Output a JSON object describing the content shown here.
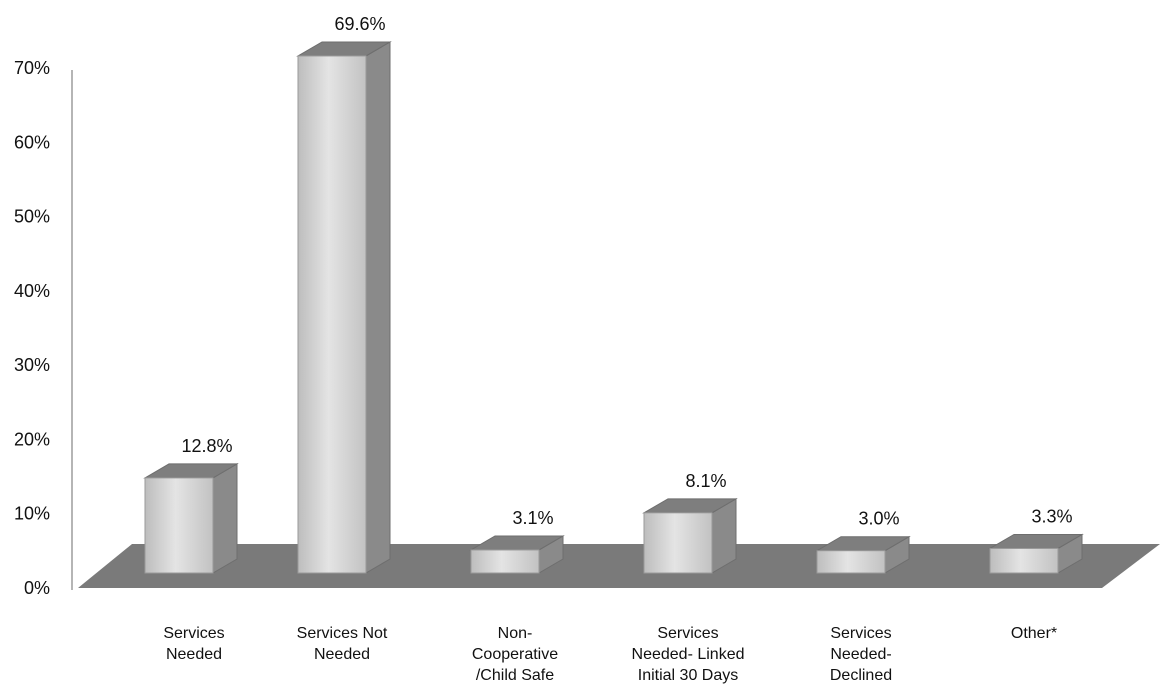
{
  "chart_data": {
    "type": "bar",
    "categories": [
      [
        "Services",
        "Needed"
      ],
      [
        "Services  Not",
        "Needed"
      ],
      [
        "Non-",
        "Cooperative",
        "/Child Safe"
      ],
      [
        "Services",
        "Needed- Linked",
        "Initial 30 Days"
      ],
      [
        "Services",
        "Needed-",
        "Declined"
      ],
      [
        "Other*"
      ]
    ],
    "values": [
      12.8,
      69.6,
      3.1,
      8.1,
      3.0,
      3.3
    ],
    "value_labels": [
      "12.8%",
      "69.6%",
      "3.1%",
      "8.1%",
      "3.0%",
      "3.3%"
    ],
    "y_ticks": [
      "0%",
      "10%",
      "20%",
      "30%",
      "40%",
      "50%",
      "60%",
      "70%"
    ],
    "ylim": [
      0,
      70
    ],
    "grid": false,
    "legend": "none",
    "style": "3d-bar",
    "colors": {
      "bar_front": "#d0d0d0",
      "bar_side": "#8a8a8a",
      "bar_top": "#7e7e7e",
      "floor": "#7a7a7a",
      "axis": "#b5b5b5"
    }
  }
}
